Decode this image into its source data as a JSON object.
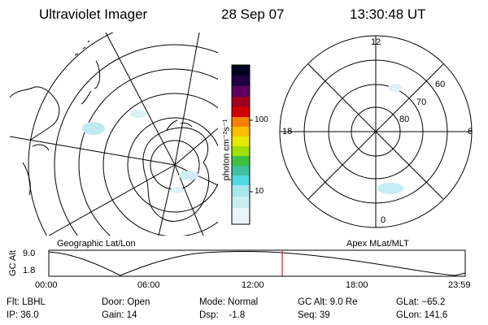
{
  "header": {
    "instrument": "Ultraviolet Imager",
    "date": "28 Sep 07",
    "time": "13:30:48 UT"
  },
  "geo_panel": {
    "label": "Geographic Lat/Lon"
  },
  "apex_panel": {
    "label": "Apex MLat/MLT",
    "mlt_labels": [
      "12",
      "18",
      "6",
      "0"
    ],
    "mlat_labels": [
      "60",
      "70",
      "80"
    ]
  },
  "colorbar": {
    "unit_label": "photon cm⁻²s⁻¹",
    "ticks": [
      "100",
      "10"
    ],
    "colors": [
      "#e8f4f8",
      "#c0ecf0",
      "#50d8e0",
      "#40c0a0",
      "#40c040",
      "#a0e000",
      "#e8e800",
      "#f8c000",
      "#f88000",
      "#f04000",
      "#d00000",
      "#a00020",
      "#600060",
      "#200040",
      "#000020"
    ]
  },
  "timeline": {
    "y_title": "GC Alt",
    "y_ticks": [
      "9.0",
      "1.8"
    ],
    "x_ticks": [
      "00:00",
      "06:00",
      "12:00",
      "18:00",
      "23:59"
    ],
    "current_time_color": "#c00000"
  },
  "status": {
    "flt": "Flt: LBHL",
    "ip": "IP: 36.0",
    "door": "Door: Open",
    "gain": "Gain: 14",
    "mode": "Mode: Normal",
    "dsp": "Dsp:    -1.8",
    "gcalt": "GC Alt: 9.0 Re",
    "seq": "Seq: 39",
    "glat": "GLat: −65.2",
    "glon": "GLon: 141.6"
  }
}
